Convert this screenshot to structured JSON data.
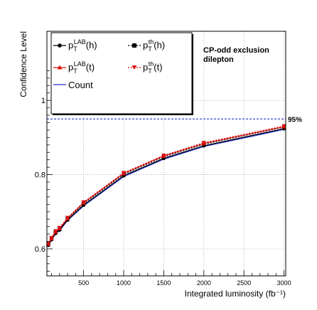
{
  "chart_data": {
    "type": "line",
    "title": "",
    "annotation": [
      "CP-odd exclusion",
      "dilepton"
    ],
    "xlabel": "Integrated luminosity (fb⁻¹)",
    "ylabel": "Confidence Level",
    "xlim": [
      60,
      3000
    ],
    "ylim": [
      0.5,
      1.1
    ],
    "x_tick_labels": [
      "500",
      "1000",
      "1500",
      "2000",
      "2500",
      "3000"
    ],
    "y_tick_labels": [
      "0.6",
      "0.8",
      "1"
    ],
    "reference_line": {
      "y": 0.95,
      "label": "95%",
      "color": "#2233cc"
    },
    "grid": true,
    "legend_position": "top-left",
    "series": [
      {
        "name": "p_T^LAB(h)",
        "color": "#000000",
        "marker": "circle",
        "x": [
          60,
          100,
          150,
          200,
          300,
          500,
          1000,
          1500,
          2000,
          3000
        ],
        "y": [
          0.61,
          0.625,
          0.642,
          0.651,
          0.678,
          0.718,
          0.797,
          0.844,
          0.878,
          0.924
        ]
      },
      {
        "name": "p_T^th(h)",
        "color": "#000000",
        "marker": "square",
        "x": [
          60,
          100,
          150,
          200,
          300,
          500,
          1000,
          1500,
          2000,
          3000
        ],
        "y": [
          0.612,
          0.627,
          0.644,
          0.653,
          0.681,
          0.722,
          0.801,
          0.848,
          0.882,
          0.928
        ]
      },
      {
        "name": "p_T^LAB(t)",
        "color": "#dd1111",
        "marker": "triangle-up",
        "x": [
          60,
          100,
          150,
          200,
          300,
          500,
          1000,
          1500,
          2000,
          3000
        ],
        "y": [
          0.613,
          0.628,
          0.646,
          0.655,
          0.682,
          0.724,
          0.803,
          0.85,
          0.884,
          0.929
        ]
      },
      {
        "name": "p_T^th(t)",
        "color": "#dd1111",
        "marker": "triangle-down",
        "x": [
          60,
          100,
          150,
          200,
          300,
          500,
          1000,
          1500,
          2000,
          3000
        ],
        "y": [
          0.615,
          0.63,
          0.648,
          0.657,
          0.684,
          0.726,
          0.805,
          0.852,
          0.886,
          0.931
        ]
      },
      {
        "name": "Count",
        "color": "#2233cc",
        "marker": "none",
        "x": [
          60,
          100,
          150,
          200,
          300,
          500,
          1000,
          1500,
          2000,
          3000
        ],
        "y": [
          0.609,
          0.624,
          0.641,
          0.65,
          0.677,
          0.716,
          0.795,
          0.842,
          0.876,
          0.922
        ]
      }
    ]
  },
  "legend": [
    {
      "base": "p",
      "sub": "T",
      "sup": "LAB",
      "tail": "(h)"
    },
    {
      "base": "p",
      "sub": "T",
      "sup": "th",
      "tail": "(h)"
    },
    {
      "base": "p",
      "sub": "T",
      "sup": "LAB",
      "tail": "(t)"
    },
    {
      "base": "p",
      "sub": "T",
      "sup": "th",
      "tail": "(t)"
    },
    {
      "text": "Count"
    }
  ]
}
